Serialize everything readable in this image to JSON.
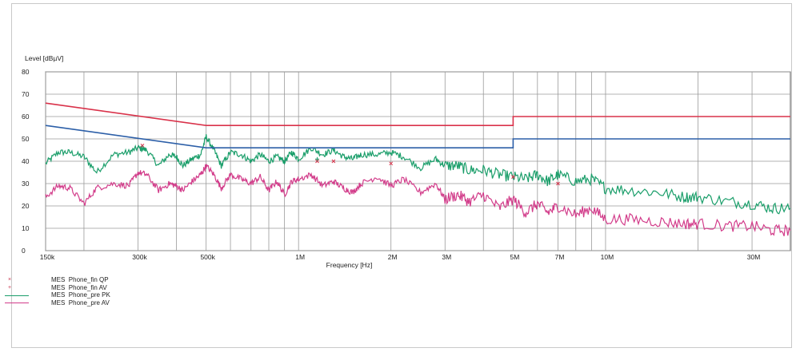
{
  "chart_data": {
    "type": "line",
    "title": "",
    "xlabel": "Frequency [Hz]",
    "ylabel": "Level [dBµV]",
    "x_scale": "log",
    "xlim": [
      150000,
      40000000
    ],
    "ylim": [
      0,
      80
    ],
    "grid": true,
    "legend_position": "bottom-left",
    "x_ticks": [
      {
        "value": 150000,
        "label": "150k"
      },
      {
        "value": 300000,
        "label": "300k"
      },
      {
        "value": 500000,
        "label": "500k"
      },
      {
        "value": 1000000,
        "label": "1M"
      },
      {
        "value": 2000000,
        "label": "2M"
      },
      {
        "value": 3000000,
        "label": "3M"
      },
      {
        "value": 5000000,
        "label": "5M"
      },
      {
        "value": 7000000,
        "label": "7M"
      },
      {
        "value": 10000000,
        "label": "10M"
      },
      {
        "value": 30000000,
        "label": "30M"
      }
    ],
    "x_gridlines": [
      150000,
      200000,
      300000,
      400000,
      500000,
      600000,
      700000,
      800000,
      900000,
      1000000,
      2000000,
      3000000,
      4000000,
      5000000,
      6000000,
      7000000,
      8000000,
      9000000,
      10000000,
      20000000,
      30000000
    ],
    "y_ticks": [
      0,
      10,
      20,
      30,
      40,
      50,
      60,
      70,
      80
    ],
    "limit_lines": [
      {
        "color": "#d9324a",
        "points": [
          [
            150000,
            66
          ],
          [
            500000,
            56
          ],
          [
            5000000,
            56
          ],
          [
            5000000,
            60
          ],
          [
            40000000,
            60
          ]
        ]
      },
      {
        "color": "#2c5fa8",
        "points": [
          [
            150000,
            56
          ],
          [
            500000,
            46
          ],
          [
            5000000,
            46
          ],
          [
            5000000,
            50
          ],
          [
            40000000,
            50
          ]
        ]
      }
    ],
    "series": [
      {
        "name": "Phone_pre PK",
        "color": "#1a9e6a",
        "x": [
          150000,
          165000,
          180000,
          200000,
          220000,
          250000,
          280000,
          300000,
          320000,
          350000,
          380000,
          400000,
          420000,
          450000,
          480000,
          500000,
          530000,
          560000,
          600000,
          650000,
          700000,
          750000,
          800000,
          850000,
          900000,
          950000,
          1000000,
          1100000,
          1200000,
          1300000,
          1400000,
          1500000,
          1600000,
          1800000,
          2000000,
          2200000,
          2500000,
          2800000,
          3000000,
          3300000,
          3600000,
          4000000,
          4500000,
          5000000,
          5500000,
          6000000,
          6500000,
          7000000,
          8000000,
          9000000,
          10000000,
          12000000,
          15000000,
          18000000,
          20000000,
          25000000,
          30000000,
          35000000,
          40000000
        ],
        "values": [
          39,
          44,
          44,
          42,
          35,
          43,
          44,
          46,
          45,
          38,
          43,
          42,
          38,
          41,
          43,
          51,
          45,
          38,
          44,
          43,
          40,
          43,
          40,
          42,
          40,
          44,
          41,
          46,
          43,
          45,
          42,
          41,
          43,
          43,
          44,
          42,
          37,
          41,
          38,
          38,
          36,
          36,
          34,
          33,
          32,
          34,
          31,
          34,
          31,
          32,
          28,
          27,
          26,
          24,
          24,
          22,
          21,
          19,
          19
        ]
      },
      {
        "name": "Phone_pre AV",
        "color": "#d23c8a",
        "x": [
          150000,
          165000,
          180000,
          200000,
          220000,
          250000,
          280000,
          300000,
          320000,
          350000,
          380000,
          400000,
          420000,
          450000,
          480000,
          500000,
          530000,
          560000,
          600000,
          650000,
          700000,
          750000,
          800000,
          850000,
          900000,
          950000,
          1000000,
          1100000,
          1200000,
          1300000,
          1400000,
          1500000,
          1600000,
          1800000,
          2000000,
          2200000,
          2500000,
          2800000,
          3000000,
          3300000,
          3600000,
          4000000,
          4500000,
          5000000,
          5500000,
          6000000,
          6500000,
          7000000,
          8000000,
          9000000,
          10000000,
          12000000,
          15000000,
          18000000,
          20000000,
          25000000,
          30000000,
          35000000,
          40000000
        ],
        "values": [
          24,
          29,
          28,
          21,
          28,
          30,
          29,
          35,
          34,
          27,
          30,
          29,
          27,
          31,
          34,
          38,
          34,
          28,
          34,
          32,
          30,
          33,
          27,
          31,
          25,
          31,
          32,
          34,
          29,
          31,
          28,
          26,
          30,
          33,
          29,
          32,
          26,
          30,
          23,
          25,
          22,
          25,
          19,
          23,
          17,
          21,
          17,
          20,
          16,
          19,
          14,
          14,
          13,
          12,
          12,
          11,
          11,
          9,
          9
        ]
      }
    ],
    "markers": [
      {
        "name": "Phone_fin QP",
        "symbol": "x",
        "color": "#d9324a",
        "points": [
          [
            310000,
            47
          ],
          [
            1150000,
            40
          ],
          [
            1300000,
            40
          ],
          [
            2000000,
            39
          ],
          [
            5000000,
            33
          ],
          [
            7000000,
            30
          ]
        ]
      },
      {
        "name": "Phone_fin AV",
        "symbol": "+",
        "color": "#1a9e6a",
        "points": [
          [
            310000,
            46
          ],
          [
            1150000,
            41
          ]
        ]
      }
    ],
    "legend": [
      {
        "prefix": "MES",
        "label": "Phone_fin QP",
        "marker": "×"
      },
      {
        "prefix": "MES",
        "label": "Phone_fin AV",
        "marker": "+"
      },
      {
        "prefix": "MES",
        "label": "Phone_pre PK",
        "marker": ""
      },
      {
        "prefix": "MES",
        "label": "Phone_pre AV",
        "marker": ""
      }
    ]
  }
}
